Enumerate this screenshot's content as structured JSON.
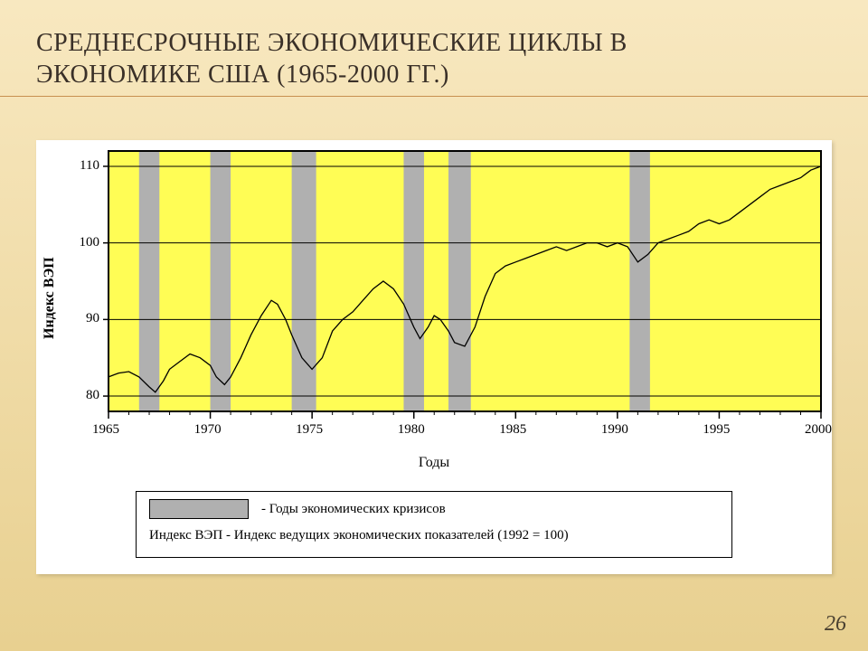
{
  "slide": {
    "title_line1": "СРЕДНЕСРОЧНЫЕ ЭКОНОМИЧЕСКИЕ  ЦИКЛЫ  В",
    "title_line2": "ЭКОНОМИКЕ  США  (1965-2000 ГГ.)",
    "page_number": "26",
    "bg_gradient_top": "#f8e8c0",
    "bg_gradient_bottom": "#e8d090",
    "accent_line_color": "#c89050"
  },
  "chart": {
    "type": "line",
    "panel_bg": "#ffffff",
    "plot_bg": "#fffd55",
    "gridline_color": "#000000",
    "gridline_width": 1,
    "border_color": "#000000",
    "border_width": 2,
    "line_color": "#000000",
    "line_width": 1.3,
    "crisis_band_color": "#b0b0b0",
    "x": {
      "label": "Годы",
      "min": 1965,
      "max": 2000,
      "tick_step": 5,
      "ticks": [
        1965,
        1970,
        1975,
        1980,
        1985,
        1990,
        1995,
        2000
      ],
      "minor_tick_step": 1,
      "label_fontsize": 16
    },
    "y": {
      "label": "Индекс ВЭП",
      "min": 78,
      "max": 112,
      "ticks": [
        80,
        90,
        100,
        110
      ],
      "tick_step": 10,
      "label_fontsize": 16,
      "label_fontweight": "bold"
    },
    "crisis_bands": [
      [
        1966.5,
        1967.5
      ],
      [
        1970.0,
        1971.0
      ],
      [
        1974.0,
        1975.2
      ],
      [
        1979.5,
        1980.5
      ],
      [
        1981.7,
        1982.8
      ],
      [
        1990.6,
        1991.6
      ]
    ],
    "series": [
      {
        "x": 1965.0,
        "y": 82.5
      },
      {
        "x": 1965.5,
        "y": 83.0
      },
      {
        "x": 1966.0,
        "y": 83.2
      },
      {
        "x": 1966.5,
        "y": 82.5
      },
      {
        "x": 1967.0,
        "y": 81.2
      },
      {
        "x": 1967.3,
        "y": 80.5
      },
      {
        "x": 1967.7,
        "y": 82.0
      },
      {
        "x": 1968.0,
        "y": 83.5
      },
      {
        "x": 1968.5,
        "y": 84.5
      },
      {
        "x": 1969.0,
        "y": 85.5
      },
      {
        "x": 1969.5,
        "y": 85.0
      },
      {
        "x": 1970.0,
        "y": 84.0
      },
      {
        "x": 1970.3,
        "y": 82.5
      },
      {
        "x": 1970.7,
        "y": 81.5
      },
      {
        "x": 1971.0,
        "y": 82.5
      },
      {
        "x": 1971.5,
        "y": 85.0
      },
      {
        "x": 1972.0,
        "y": 88.0
      },
      {
        "x": 1972.5,
        "y": 90.5
      },
      {
        "x": 1973.0,
        "y": 92.5
      },
      {
        "x": 1973.3,
        "y": 92.0
      },
      {
        "x": 1973.7,
        "y": 90.0
      },
      {
        "x": 1974.0,
        "y": 88.0
      },
      {
        "x": 1974.5,
        "y": 85.0
      },
      {
        "x": 1975.0,
        "y": 83.5
      },
      {
        "x": 1975.5,
        "y": 85.0
      },
      {
        "x": 1976.0,
        "y": 88.5
      },
      {
        "x": 1976.5,
        "y": 90.0
      },
      {
        "x": 1977.0,
        "y": 91.0
      },
      {
        "x": 1977.5,
        "y": 92.5
      },
      {
        "x": 1978.0,
        "y": 94.0
      },
      {
        "x": 1978.5,
        "y": 95.0
      },
      {
        "x": 1979.0,
        "y": 94.0
      },
      {
        "x": 1979.5,
        "y": 92.0
      },
      {
        "x": 1980.0,
        "y": 89.0
      },
      {
        "x": 1980.3,
        "y": 87.5
      },
      {
        "x": 1980.7,
        "y": 89.0
      },
      {
        "x": 1981.0,
        "y": 90.5
      },
      {
        "x": 1981.3,
        "y": 90.0
      },
      {
        "x": 1981.7,
        "y": 88.5
      },
      {
        "x": 1982.0,
        "y": 87.0
      },
      {
        "x": 1982.5,
        "y": 86.5
      },
      {
        "x": 1983.0,
        "y": 89.0
      },
      {
        "x": 1983.5,
        "y": 93.0
      },
      {
        "x": 1984.0,
        "y": 96.0
      },
      {
        "x": 1984.5,
        "y": 97.0
      },
      {
        "x": 1985.0,
        "y": 97.5
      },
      {
        "x": 1985.5,
        "y": 98.0
      },
      {
        "x": 1986.0,
        "y": 98.5
      },
      {
        "x": 1986.5,
        "y": 99.0
      },
      {
        "x": 1987.0,
        "y": 99.5
      },
      {
        "x": 1987.5,
        "y": 99.0
      },
      {
        "x": 1988.0,
        "y": 99.5
      },
      {
        "x": 1988.5,
        "y": 100.0
      },
      {
        "x": 1989.0,
        "y": 100.0
      },
      {
        "x": 1989.5,
        "y": 99.5
      },
      {
        "x": 1990.0,
        "y": 100.0
      },
      {
        "x": 1990.5,
        "y": 99.5
      },
      {
        "x": 1991.0,
        "y": 97.5
      },
      {
        "x": 1991.5,
        "y": 98.5
      },
      {
        "x": 1992.0,
        "y": 100.0
      },
      {
        "x": 1992.5,
        "y": 100.5
      },
      {
        "x": 1993.0,
        "y": 101.0
      },
      {
        "x": 1993.5,
        "y": 101.5
      },
      {
        "x": 1994.0,
        "y": 102.5
      },
      {
        "x": 1994.5,
        "y": 103.0
      },
      {
        "x": 1995.0,
        "y": 102.5
      },
      {
        "x": 1995.5,
        "y": 103.0
      },
      {
        "x": 1996.0,
        "y": 104.0
      },
      {
        "x": 1996.5,
        "y": 105.0
      },
      {
        "x": 1997.0,
        "y": 106.0
      },
      {
        "x": 1997.5,
        "y": 107.0
      },
      {
        "x": 1998.0,
        "y": 107.5
      },
      {
        "x": 1998.5,
        "y": 108.0
      },
      {
        "x": 1999.0,
        "y": 108.5
      },
      {
        "x": 1999.5,
        "y": 109.5
      },
      {
        "x": 2000.0,
        "y": 110.0
      }
    ],
    "legend": {
      "swatch_color": "#b0b0b0",
      "swatch_label": " - Годы экономических кризисов",
      "footnote": "Индекс ВЭП - Индекс ведущих экономических показателей (1992 = 100)",
      "fontsize": 15,
      "border_color": "#000000"
    }
  }
}
